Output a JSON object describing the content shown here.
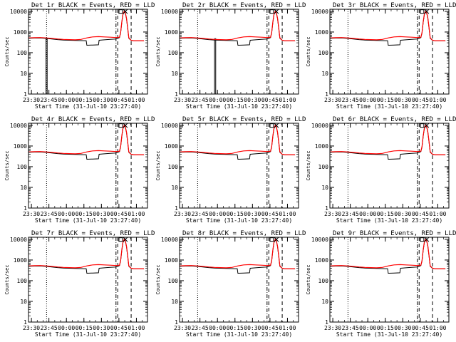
{
  "figure": {
    "xlabel": "Start Time (31-Jul-10 23:27:40)",
    "ylabel": "Counts/sec",
    "y_ticks": [
      {
        "value": 1,
        "label": "1"
      },
      {
        "value": 10,
        "label": "10"
      },
      {
        "value": 100,
        "label": "100"
      },
      {
        "value": 1000,
        "label": "1000"
      },
      {
        "value": 10000,
        "label": "10000"
      }
    ],
    "x_ticks": [
      {
        "value": 2.5,
        "label": "23:30"
      },
      {
        "value": 17.5,
        "label": "23:45"
      },
      {
        "value": 32.5,
        "label": "00:00"
      },
      {
        "value": 47.5,
        "label": "00:15"
      },
      {
        "value": 62.5,
        "label": "00:30"
      },
      {
        "value": 77.5,
        "label": "00:45"
      },
      {
        "value": 92.5,
        "label": "01:00"
      }
    ],
    "colors": {
      "events": "#000000",
      "lld": "#ff0000"
    }
  },
  "chart_data": [
    {
      "type": "line",
      "title": "Det 1r BLACK = Events, RED = LLD",
      "dropout": [
        15,
        16
      ]
    },
    {
      "type": "line",
      "title": "Det 2r BLACK = Events, RED = LLD",
      "dropout": [
        30,
        31
      ]
    },
    {
      "type": "line",
      "title": "Det 3r BLACK = Events, RED = LLD"
    },
    {
      "type": "line",
      "title": "Det 4r BLACK = Events, RED = LLD"
    },
    {
      "type": "line",
      "title": "Det 5r BLACK = Events, RED = LLD"
    },
    {
      "type": "line",
      "title": "Det 6r BLACK = Events, RED = LLD"
    },
    {
      "type": "line",
      "title": "Det 7r BLACK = Events, RED = LLD"
    },
    {
      "type": "line",
      "title": "Det 8r BLACK = Events, RED = LLD"
    },
    {
      "type": "line",
      "title": "Det 9r BLACK = Events, RED = LLD"
    }
  ],
  "shared_series": {
    "xlim": [
      0,
      102
    ],
    "ylim_log10": [
      0,
      4.1
    ],
    "scale": "log",
    "events": {
      "x": [
        0,
        5,
        10,
        15,
        20,
        25,
        30,
        35,
        40,
        45,
        49.5,
        50,
        55,
        60,
        60.5,
        65,
        70,
        75,
        78,
        79,
        80,
        81,
        82,
        83,
        84,
        85,
        86,
        88,
        90,
        95,
        99
      ],
      "y": [
        500,
        510,
        520,
        490,
        460,
        430,
        410,
        400,
        390,
        385,
        380,
        230,
        235,
        240,
        400,
        420,
        440,
        460,
        540,
        900,
        3000,
        7000,
        9500,
        8000,
        4500,
        1500,
        500,
        390,
        380,
        380,
        380
      ]
    },
    "lld": {
      "x": [
        0,
        5,
        10,
        15,
        20,
        25,
        30,
        35,
        40,
        45,
        50,
        55,
        60,
        65,
        70,
        75,
        78,
        79,
        80,
        81,
        82,
        83,
        84,
        85,
        86,
        88,
        90,
        95,
        99
      ],
      "y": [
        520,
        530,
        540,
        520,
        490,
        460,
        440,
        430,
        420,
        440,
        520,
        580,
        600,
        580,
        560,
        540,
        560,
        950,
        3200,
        7500,
        10000,
        8500,
        4800,
        1600,
        520,
        400,
        380,
        380,
        380
      ]
    },
    "vlines": [
      {
        "x": 15.5,
        "style": "dotted"
      },
      {
        "x": 75,
        "style": "dash-dot"
      },
      {
        "x": 76.5,
        "style": "dashed"
      },
      {
        "x": 88,
        "style": "dashed"
      }
    ],
    "markers": [
      {
        "x": 79,
        "y": 9800,
        "symbol": "square"
      },
      {
        "x": 83,
        "y": 9800,
        "symbol": "x"
      }
    ]
  }
}
